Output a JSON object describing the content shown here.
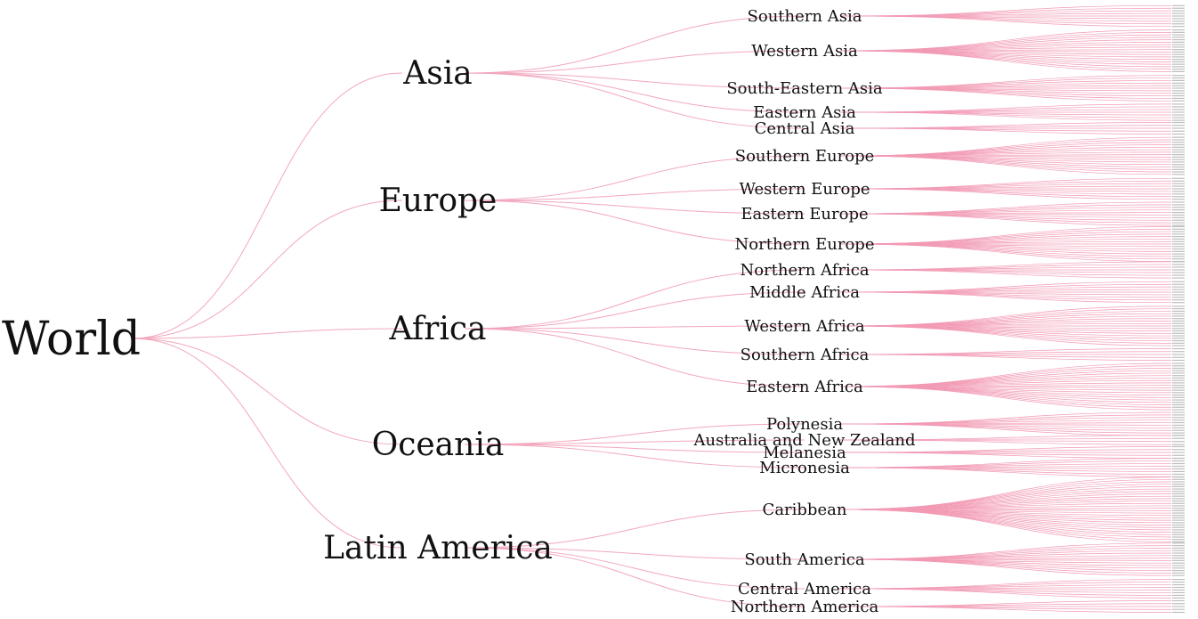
{
  "root": {
    "label": "World"
  },
  "continents": [
    {
      "label": "Asia",
      "regions": [
        {
          "label": "Southern Asia",
          "country_count": 9
        },
        {
          "label": "Western Asia",
          "country_count": 18
        },
        {
          "label": "South-Eastern Asia",
          "country_count": 11
        },
        {
          "label": "Eastern Asia",
          "country_count": 7
        },
        {
          "label": "Central Asia",
          "country_count": 5
        }
      ]
    },
    {
      "label": "Europe",
      "regions": [
        {
          "label": "Southern Europe",
          "country_count": 16
        },
        {
          "label": "Western Europe",
          "country_count": 9
        },
        {
          "label": "Eastern Europe",
          "country_count": 10
        },
        {
          "label": "Northern Europe",
          "country_count": 15
        }
      ]
    },
    {
      "label": "Africa",
      "regions": [
        {
          "label": "Northern Africa",
          "country_count": 7
        },
        {
          "label": "Middle Africa",
          "country_count": 9
        },
        {
          "label": "Western Africa",
          "country_count": 17
        },
        {
          "label": "Southern Africa",
          "country_count": 5
        },
        {
          "label": "Eastern Africa",
          "country_count": 20
        }
      ]
    },
    {
      "label": "Oceania",
      "regions": [
        {
          "label": "Polynesia",
          "country_count": 10
        },
        {
          "label": "Australia and New Zealand",
          "country_count": 4
        },
        {
          "label": "Melanesia",
          "country_count": 5
        },
        {
          "label": "Micronesia",
          "country_count": 8
        }
      ]
    },
    {
      "label": "Latin America",
      "regions": [
        {
          "label": "Caribbean",
          "country_count": 28
        },
        {
          "label": "South America",
          "country_count": 14
        },
        {
          "label": "Central America",
          "country_count": 8
        },
        {
          "label": "Northern America",
          "country_count": 5
        }
      ]
    }
  ],
  "colors": {
    "link": "#f2a7bd",
    "leaf_link": "#f29ab4",
    "text": "#111111"
  }
}
